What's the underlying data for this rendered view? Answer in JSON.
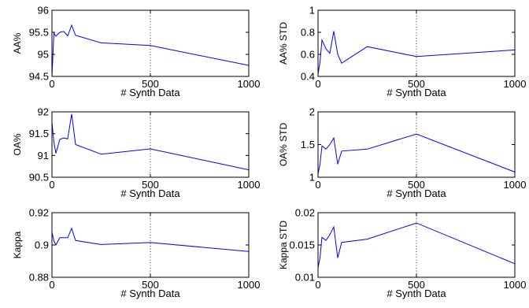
{
  "chart_data": [
    {
      "type": "line",
      "xlabel": "# Synth Data",
      "ylabel": "AA%",
      "xlim": [
        0,
        1000
      ],
      "ylim": [
        94.5,
        96
      ],
      "xticks": [
        "0",
        "500",
        "1000"
      ],
      "yticks": [
        "94.5",
        "95",
        "95.5",
        "96"
      ],
      "x_values": [
        0,
        10,
        20,
        40,
        60,
        80,
        100,
        120,
        250,
        500,
        1000
      ],
      "y_values": [
        94.5,
        95.48,
        95.41,
        95.5,
        95.52,
        95.42,
        95.66,
        95.43,
        95.26,
        95.2,
        94.75
      ],
      "grid": "x=500 dotted",
      "color": "#0000ff"
    },
    {
      "type": "line",
      "xlabel": "# Synth Data",
      "ylabel": "AA% STD",
      "xlim": [
        0,
        1000
      ],
      "ylim": [
        0.4,
        1
      ],
      "xticks": [
        "0",
        "500",
        "1000"
      ],
      "yticks": [
        "0.4",
        "0.6",
        "0.8",
        "1"
      ],
      "x_values": [
        0,
        10,
        20,
        40,
        60,
        80,
        100,
        120,
        250,
        500,
        1000
      ],
      "y_values": [
        0.42,
        0.53,
        0.73,
        0.65,
        0.61,
        0.81,
        0.6,
        0.52,
        0.67,
        0.58,
        0.64
      ],
      "grid": "x=500 dotted",
      "color": "#0000ff"
    },
    {
      "type": "line",
      "xlabel": "# Synth Data",
      "ylabel": "OA%",
      "xlim": [
        0,
        1000
      ],
      "ylim": [
        90.5,
        92
      ],
      "xticks": [
        "0",
        "500",
        "1000"
      ],
      "yticks": [
        "90.5",
        "91",
        "91.5",
        "92"
      ],
      "x_values": [
        0,
        10,
        20,
        40,
        60,
        80,
        100,
        120,
        250,
        500,
        1000
      ],
      "y_values": [
        91.76,
        91.3,
        91.05,
        91.37,
        91.4,
        91.38,
        91.95,
        91.25,
        91.03,
        91.15,
        90.67
      ],
      "grid": "x=500 dotted",
      "color": "#0000ff"
    },
    {
      "type": "line",
      "xlabel": "# Synth Data",
      "ylabel": "OA% STD",
      "xlim": [
        0,
        1000
      ],
      "ylim": [
        1,
        2
      ],
      "xticks": [
        "0",
        "500",
        "1000"
      ],
      "yticks": [
        "1",
        "1.5",
        "2"
      ],
      "x_values": [
        0,
        10,
        20,
        40,
        60,
        80,
        100,
        120,
        250,
        500,
        1000
      ],
      "y_values": [
        1.05,
        1.2,
        1.48,
        1.43,
        1.5,
        1.6,
        1.2,
        1.4,
        1.43,
        1.66,
        1.08
      ],
      "grid": "x=500 dotted",
      "color": "#0000ff"
    },
    {
      "type": "line",
      "xlabel": "# Synth Data",
      "ylabel": "Kappa",
      "xlim": [
        0,
        1000
      ],
      "ylim": [
        0.88,
        0.92
      ],
      "xticks": [
        "0",
        "500",
        "1000"
      ],
      "yticks": [
        "0.88",
        "0.9",
        "0.92"
      ],
      "x_values": [
        0,
        10,
        20,
        40,
        60,
        80,
        100,
        120,
        250,
        500,
        1000
      ],
      "y_values": [
        0.908,
        0.9025,
        0.9,
        0.9045,
        0.9045,
        0.9045,
        0.9103,
        0.9028,
        0.9003,
        0.9015,
        0.896
      ],
      "grid": "x=500 dotted",
      "color": "#0000ff"
    },
    {
      "type": "line",
      "xlabel": "# Synth Data",
      "ylabel": "Kappa STD",
      "xlim": [
        0,
        1000
      ],
      "ylim": [
        0.01,
        0.02
      ],
      "xticks": [
        "0",
        "500",
        "1000"
      ],
      "yticks": [
        "0.01",
        "0.015",
        "0.02"
      ],
      "x_values": [
        0,
        10,
        20,
        40,
        60,
        80,
        100,
        120,
        250,
        500,
        1000
      ],
      "y_values": [
        0.0115,
        0.013,
        0.0162,
        0.0157,
        0.0166,
        0.0178,
        0.013,
        0.0154,
        0.0159,
        0.0184,
        0.0121
      ],
      "grid": "x=500 dotted",
      "color": "#0000ff"
    }
  ]
}
